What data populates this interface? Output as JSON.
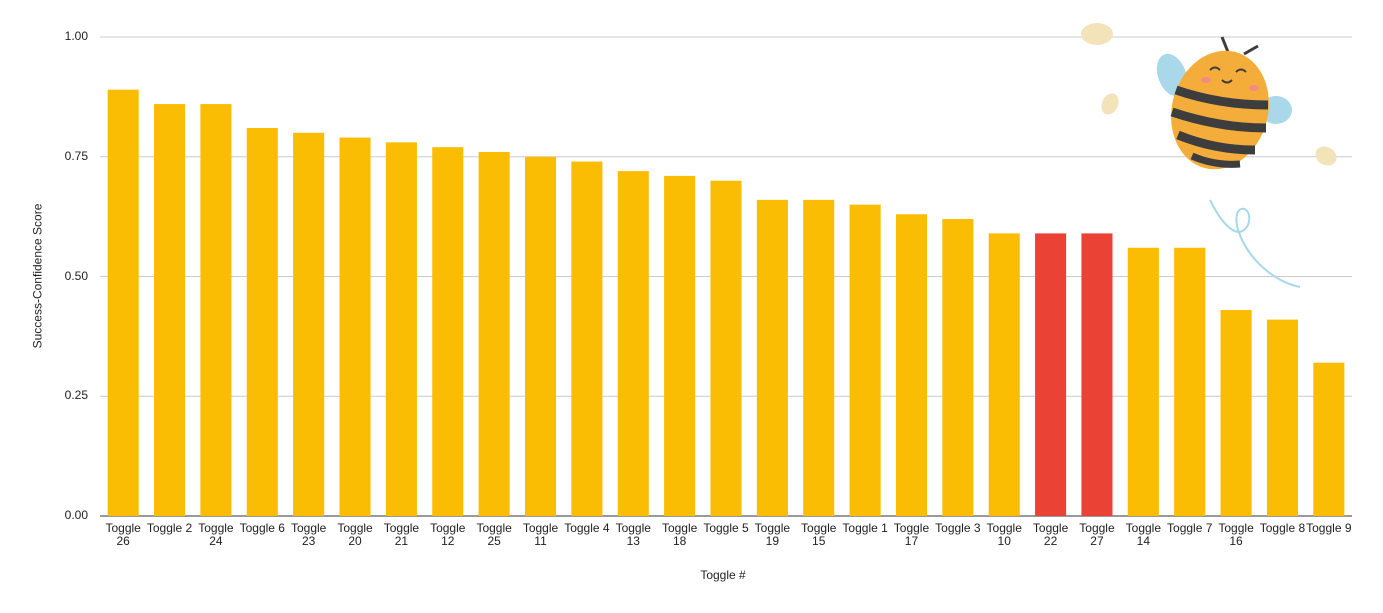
{
  "chart_data": {
    "type": "bar",
    "x_label": "Toggle #",
    "y_label": "Success-Confidence Score",
    "categories": [
      "Toggle 26",
      "Toggle 2",
      "Toggle 24",
      "Toggle 6",
      "Toggle 23",
      "Toggle 20",
      "Toggle 21",
      "Toggle 12",
      "Toggle 25",
      "Toggle 11",
      "Toggle 4",
      "Toggle 13",
      "Toggle 18",
      "Toggle 5",
      "Toggle 19",
      "Toggle 15",
      "Toggle 1",
      "Toggle 17",
      "Toggle 3",
      "Toggle 10",
      "Toggle 22",
      "Toggle 27",
      "Toggle 14",
      "Toggle 7",
      "Toggle 16",
      "Toggle 8",
      "Toggle 9"
    ],
    "values": [
      0.89,
      0.86,
      0.86,
      0.81,
      0.8,
      0.79,
      0.78,
      0.77,
      0.76,
      0.75,
      0.74,
      0.72,
      0.71,
      0.7,
      0.66,
      0.66,
      0.65,
      0.63,
      0.62,
      0.59,
      0.59,
      0.59,
      0.56,
      0.56,
      0.43,
      0.41,
      0.32
    ],
    "colors": [
      "#fbbc04",
      "#fbbc04",
      "#fbbc04",
      "#fbbc04",
      "#fbbc04",
      "#fbbc04",
      "#fbbc04",
      "#fbbc04",
      "#fbbc04",
      "#fbbc04",
      "#fbbc04",
      "#fbbc04",
      "#fbbc04",
      "#fbbc04",
      "#fbbc04",
      "#fbbc04",
      "#fbbc04",
      "#fbbc04",
      "#fbbc04",
      "#fbbc04",
      "#ea4335",
      "#ea4335",
      "#fbbc04",
      "#fbbc04",
      "#fbbc04",
      "#fbbc04",
      "#fbbc04"
    ],
    "ylim": [
      0,
      1
    ],
    "yticks": [
      {
        "value": 0,
        "label": "0.00"
      },
      {
        "value": 0.25,
        "label": "0.25"
      },
      {
        "value": 0.5,
        "label": "0.50"
      },
      {
        "value": 0.75,
        "label": "0.75"
      },
      {
        "value": 1,
        "label": "1.00"
      }
    ],
    "grid": true
  }
}
